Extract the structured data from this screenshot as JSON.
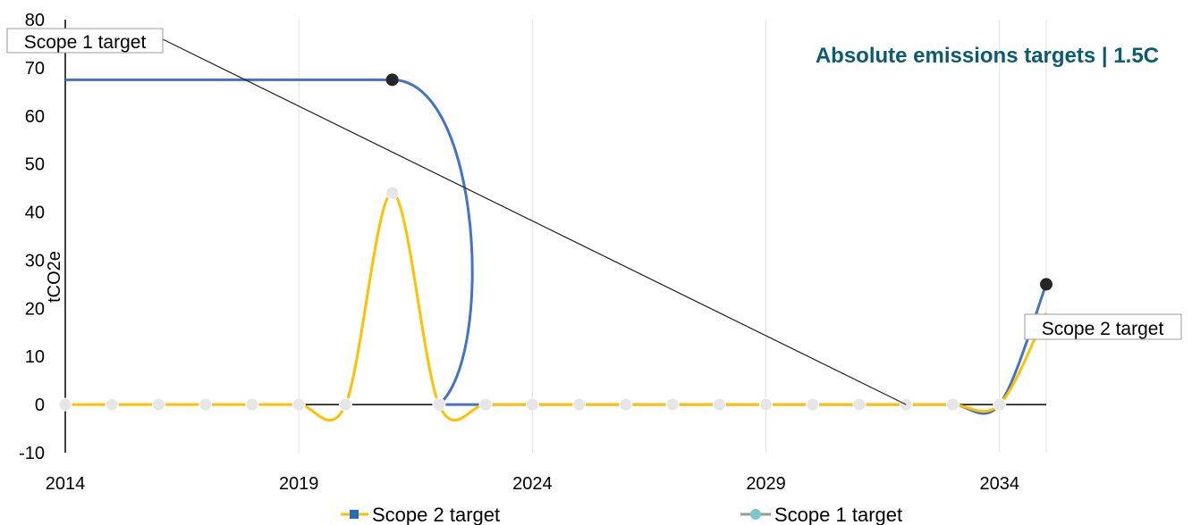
{
  "chart_data": {
    "type": "line",
    "title": "Absolute emissions targets | 1.5C",
    "ylabel": "tCO2e",
    "xlabel": "",
    "xlim": [
      2014,
      2035
    ],
    "ylim": [
      -10,
      80
    ],
    "x_ticks": [
      "2014",
      "2019",
      "2024",
      "2029",
      "2034"
    ],
    "y_ticks": [
      "-10",
      "0",
      "10",
      "20",
      "30",
      "40",
      "50",
      "60",
      "70",
      "80"
    ],
    "x": [
      2014,
      2015,
      2016,
      2017,
      2018,
      2019,
      2020,
      2021,
      2022,
      2023,
      2024,
      2025,
      2026,
      2027,
      2028,
      2029,
      2030,
      2031,
      2032,
      2033,
      2034,
      2035
    ],
    "grid": "vertical",
    "legend_position": "bottom",
    "series": [
      {
        "name": "Scope 2 target",
        "color": "#FFC000",
        "marker": "square",
        "values": [
          0,
          0,
          0,
          0,
          0,
          0,
          0,
          44,
          0,
          0,
          0,
          0,
          0,
          0,
          0,
          0,
          0,
          0,
          0,
          0,
          0,
          19
        ]
      },
      {
        "name": "Scope 1 target",
        "color": "#4472C4",
        "marker": "circle",
        "values": [
          67.5,
          67.5,
          67.5,
          67.5,
          67.5,
          67.5,
          67.5,
          67.5,
          0,
          0,
          0,
          0,
          0,
          0,
          0,
          0,
          0,
          0,
          0,
          0,
          0,
          25
        ]
      }
    ],
    "annotations": [
      {
        "text": "Scope 1 target",
        "points_to": [
          2032,
          0
        ]
      },
      {
        "text": "Scope 2 target"
      }
    ],
    "highlighted_points": [
      {
        "x": 2021,
        "y": 67.5
      },
      {
        "x": 2035,
        "y": 25
      }
    ],
    "colors": {
      "marker_fill": "#E6E6E6",
      "highlight": "#262626",
      "title": "#0B5B73",
      "axis": "#000000",
      "grid": "#E0E0E0",
      "legend_scope1": "#7FC6C9",
      "legend_scope2_marker": "#1F6FB5"
    }
  }
}
